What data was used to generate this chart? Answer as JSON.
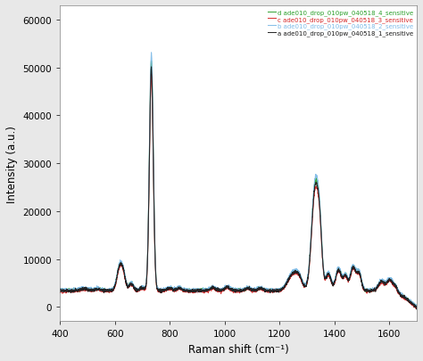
{
  "title": "",
  "xlabel": "Raman shift (cm⁻¹)",
  "ylabel": "Intensity (a.u.)",
  "xlim": [
    400,
    1700
  ],
  "ylim": [
    -3000,
    63000
  ],
  "legend_labels": [
    "d ade010_drop_010pw_040518_4_sensitive",
    "c ade010_drop_010pw_040518_3_sensitive",
    "b ade010_drop_010pw_040518_2_sensitive",
    "a ade010_drop_010pw_040518_1_sensitive"
  ],
  "legend_colors": [
    "#2ca02c",
    "#d62728",
    "#7fbbe8",
    "#1a1a1a"
  ],
  "line_colors": [
    "#2ca02c",
    "#d62728",
    "#7fbbe8",
    "#1a1a1a"
  ],
  "background_color": "#e8e8e8",
  "plot_bg_color": "#ffffff",
  "yticks": [
    0,
    10000,
    20000,
    30000,
    40000,
    50000,
    60000
  ],
  "xticks": [
    400,
    600,
    800,
    1000,
    1200,
    1400,
    1600
  ]
}
